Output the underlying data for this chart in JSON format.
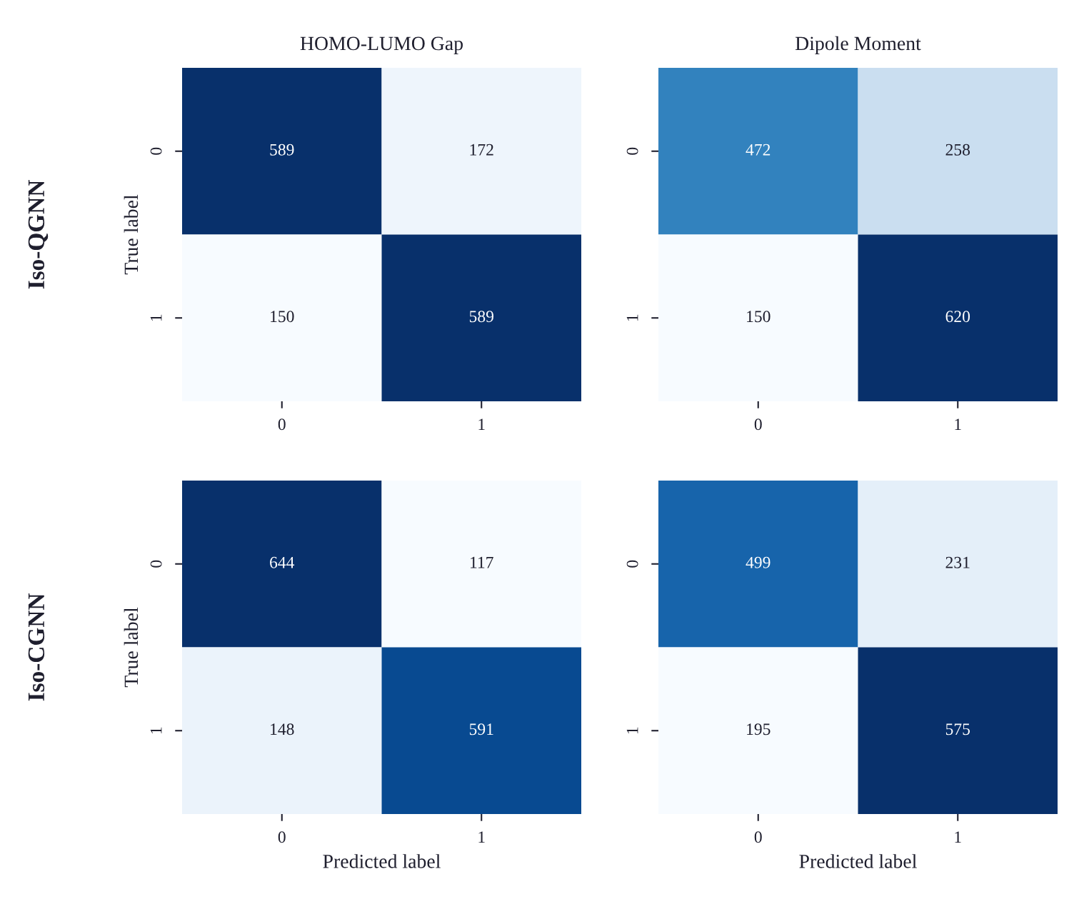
{
  "chart_data": [
    {
      "type": "heatmap",
      "title": "HOMO-LUMO Gap",
      "ylabel": "True label",
      "annotations": [
        "Iso-QGNN"
      ],
      "data_labels": true,
      "categories": [
        "0",
        "1"
      ],
      "y_categories": [
        "0",
        "1"
      ],
      "cells": [
        [
          589,
          172
        ],
        [
          150,
          589
        ]
      ]
    },
    {
      "type": "heatmap",
      "title": "Dipole Moment",
      "data_labels": true,
      "categories": [
        "0",
        "1"
      ],
      "y_categories": [
        "0",
        "1"
      ],
      "cells": [
        [
          472,
          258
        ],
        [
          150,
          620
        ]
      ]
    },
    {
      "type": "heatmap",
      "xlabel": "Predicted label",
      "ylabel": "True label",
      "annotations": [
        "Iso-CGNN"
      ],
      "data_labels": true,
      "categories": [
        "0",
        "1"
      ],
      "y_categories": [
        "0",
        "1"
      ],
      "cells": [
        [
          644,
          117
        ],
        [
          148,
          591
        ]
      ]
    },
    {
      "type": "heatmap",
      "xlabel": "Predicted label",
      "data_labels": true,
      "categories": [
        "0",
        "1"
      ],
      "y_categories": [
        "0",
        "1"
      ],
      "cells": [
        [
          499,
          231
        ],
        [
          195,
          575
        ]
      ]
    }
  ]
}
